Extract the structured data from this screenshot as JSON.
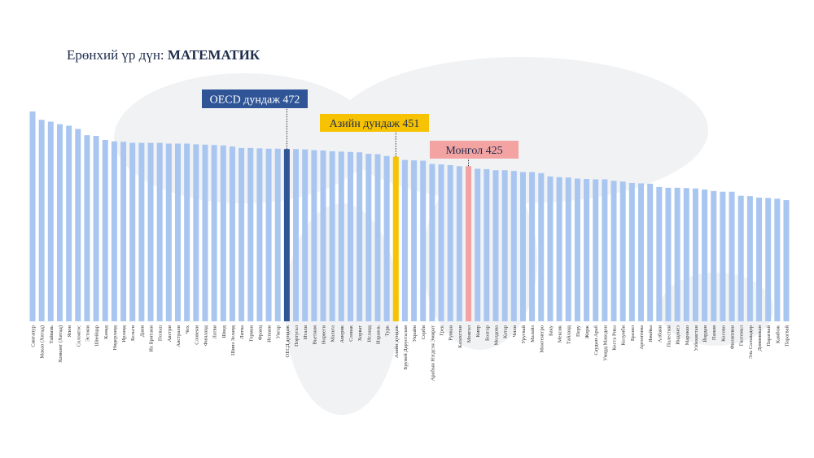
{
  "chart_data": {
    "type": "bar",
    "title": "Ерөнхий үр дүн:",
    "subject": "МАТЕМАТИК",
    "color": "#a9c6f0",
    "categories": [
      "Сингапур",
      "Макао (Хятад)",
      "Тайвань",
      "Хонконг (Хятад)",
      "Япон",
      "Солонгос",
      "Эстони",
      "Швейцар",
      "Канад",
      "Нидерланд",
      "Ирланд",
      "Бельги",
      "Дани",
      "Их Британи",
      "Польш",
      "Австри",
      "Австрали",
      "Чех",
      "Словени",
      "Финланд",
      "Латви",
      "Швед",
      "Шинэ Зеланд",
      "Литва",
      "Герман",
      "Франц",
      "Испани",
      "Унгар",
      "ОЕСД дундаж",
      "Португал",
      "Итали",
      "Вьетнам",
      "Норвеги",
      "Мальта",
      "Америк",
      "Словак",
      "Хорват",
      "Исланд",
      "Израиль",
      "Турк",
      "Азийн дундаж",
      "Бруней Даруссалам",
      "Украйн",
      "Серби",
      "Арабын Нэгдсэн Эмират",
      "Грек",
      "Румын",
      "Казахстан",
      "Монгол",
      "Кипр",
      "Болгар",
      "Молдова",
      "Катар",
      "Чили",
      "Уругвай",
      "Малайз",
      "Монтенегро",
      "Баку",
      "Мексик",
      "Тайланд",
      "Перу",
      "Жорж",
      "Саудын Араб",
      "Умард Македон",
      "Коста Рика",
      "Колумби",
      "Бразил",
      "Аргентина",
      "Ямайка",
      "Албани",
      "Палестин",
      "Индонез",
      "Марокко",
      "Узбекистан",
      "Йордан",
      "Панам",
      "Косово",
      "Филиппин",
      "Гватемал",
      "Эль Сальвадор",
      "Доминикан",
      "Парагвай",
      "Камбож",
      "Парагвай"
    ],
    "values": [
      575,
      552,
      547,
      540,
      536,
      527,
      510,
      508,
      497,
      493,
      492,
      489,
      489,
      489,
      489,
      487,
      487,
      487,
      485,
      484,
      483,
      482,
      479,
      475,
      475,
      474,
      473,
      473,
      472,
      472,
      471,
      469,
      468,
      466,
      465,
      464,
      463,
      459,
      458,
      453,
      451,
      442,
      441,
      440,
      431,
      430,
      428,
      425,
      425,
      418,
      417,
      414,
      414,
      412,
      409,
      409,
      406,
      397,
      395,
      394,
      391,
      390,
      389,
      389,
      385,
      383,
      379,
      378,
      377,
      368,
      366,
      366,
      365,
      364,
      361,
      357,
      355,
      355,
      344,
      343,
      339,
      338,
      336,
      332
    ],
    "annotations": [
      {
        "text": "OECD дундаж 472",
        "category": "ОЕСД дундаж",
        "color": "#2f5597",
        "text_color": "#ffffff"
      },
      {
        "text": "Азийн дундаж 451",
        "category": "Азийн дундаж",
        "color": "#f7c300",
        "text_color": "#1f2d4d"
      },
      {
        "text": "Монгол 425",
        "category": "Монгол",
        "color": "#f4a3a3",
        "text_color": "#1f2d4d"
      }
    ]
  }
}
